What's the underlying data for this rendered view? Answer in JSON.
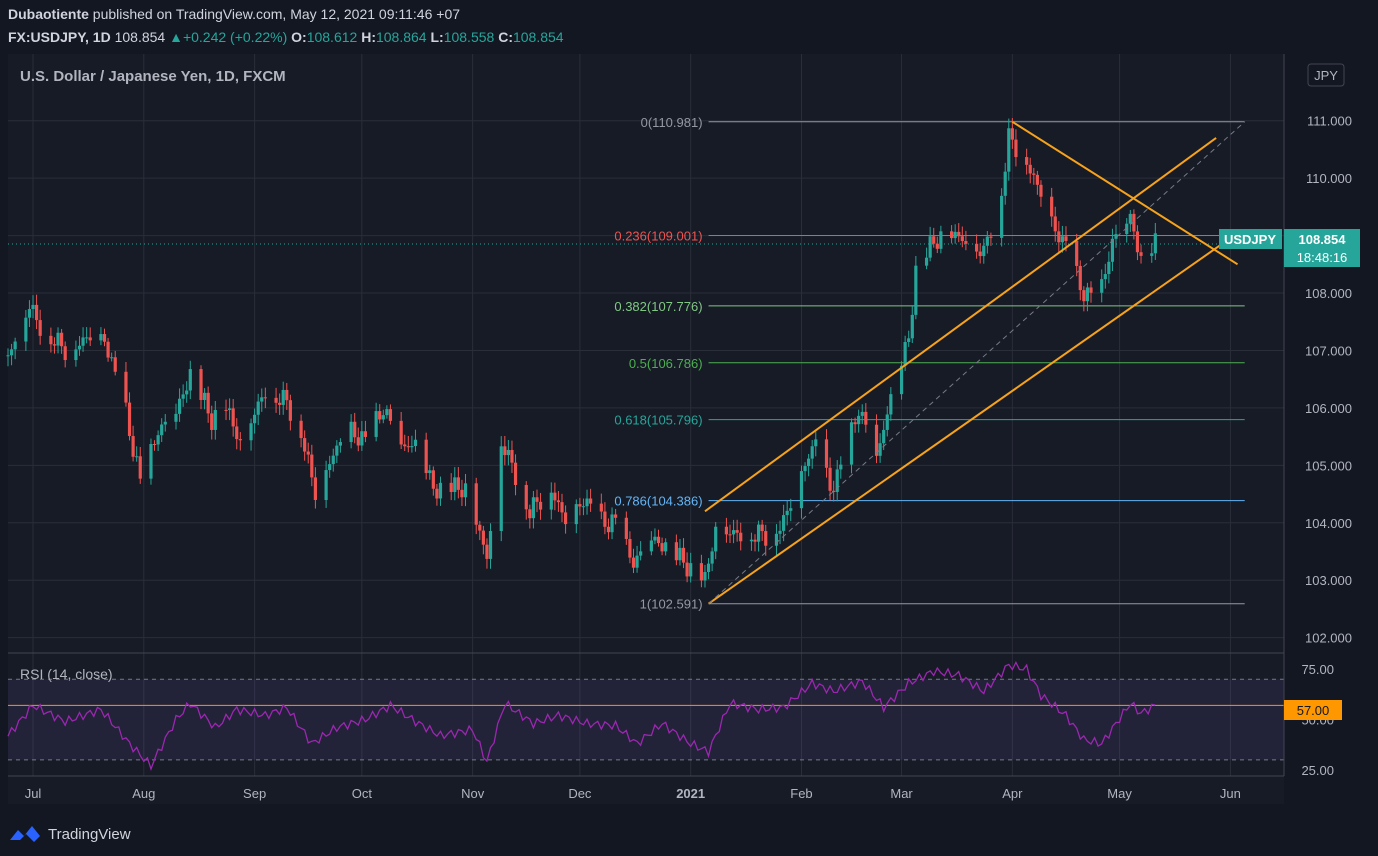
{
  "header": {
    "author": "Dubaotiente",
    "published_text": "published on TradingView.com, May 12, 2021 09:11:46 +07",
    "symbol": "FX:USDJPY, 1D",
    "last": "108.854",
    "change": "+0.242 (+0.22%)",
    "o_label": "O:",
    "o": "108.612",
    "h_label": "H:",
    "h": "108.864",
    "l_label": "L:",
    "l": "108.558",
    "c_label": "C:",
    "c": "108.854"
  },
  "chart": {
    "title": "U.S. Dollar / Japanese Yen, 1D, FXCM",
    "currency": "JPY",
    "price_tag_symbol": "USDJPY",
    "price_tag_value": "108.854",
    "countdown": "18:48:16",
    "rsi_label": "RSI (14, close)",
    "rsi_tag": "57.00"
  },
  "footer": {
    "brand": "TradingView"
  },
  "colors": {
    "background": "#131722",
    "up": "#26a69a",
    "down": "#ef5350",
    "channel": "#f7a21b",
    "rsi": "#9c27b0",
    "accent": "#26a69a"
  },
  "chart_data": [
    {
      "type": "candlestick",
      "title": "U.S. Dollar / Japanese Yen, 1D, FXCM",
      "ylim": [
        101.75,
        111.5
      ],
      "y_ticks": [
        "111.000",
        "110.000",
        "109.000",
        "108.000",
        "107.000",
        "106.000",
        "105.000",
        "104.000",
        "103.000",
        "102.000"
      ],
      "x_ticks": [
        "Jul",
        "Aug",
        "Sep",
        "Oct",
        "Nov",
        "Dec",
        "2021",
        "Feb",
        "Mar",
        "Apr",
        "May",
        "Jun"
      ],
      "x_range": [
        "2020-06-24",
        "2021-06-16"
      ],
      "close_path": [
        [
          "2020-06-24",
          106.9
        ],
        [
          "2020-06-30",
          107.8
        ],
        [
          "2020-07-02",
          107.5
        ],
        [
          "2020-07-10",
          107.0
        ],
        [
          "2020-07-16",
          107.2
        ],
        [
          "2020-07-21",
          107.2
        ],
        [
          "2020-07-27",
          105.9
        ],
        [
          "2020-07-31",
          104.7
        ],
        [
          "2020-08-05",
          105.6
        ],
        [
          "2020-08-10",
          105.9
        ],
        [
          "2020-08-14",
          106.6
        ],
        [
          "2020-08-20",
          105.8
        ],
        [
          "2020-08-24",
          106.0
        ],
        [
          "2020-08-28",
          105.4
        ],
        [
          "2020-09-01",
          105.9
        ],
        [
          "2020-09-04",
          106.3
        ],
        [
          "2020-09-10",
          106.1
        ],
        [
          "2020-09-14",
          105.6
        ],
        [
          "2020-09-18",
          104.5
        ],
        [
          "2020-09-23",
          105.2
        ],
        [
          "2020-09-28",
          105.6
        ],
        [
          "2020-10-02",
          105.4
        ],
        [
          "2020-10-07",
          106.0
        ],
        [
          "2020-10-12",
          105.3
        ],
        [
          "2020-10-16",
          105.4
        ],
        [
          "2020-10-21",
          104.6
        ],
        [
          "2020-10-27",
          104.6
        ],
        [
          "2020-10-30",
          104.6
        ],
        [
          "2020-11-05",
          103.4
        ],
        [
          "2020-11-09",
          105.4
        ],
        [
          "2020-11-12",
          105.0
        ],
        [
          "2020-11-17",
          104.2
        ],
        [
          "2020-11-23",
          104.6
        ],
        [
          "2020-11-27",
          104.0
        ],
        [
          "2020-12-02",
          104.4
        ],
        [
          "2020-12-07",
          104.0
        ],
        [
          "2020-12-11",
          104.0
        ],
        [
          "2020-12-16",
          103.3
        ],
        [
          "2020-12-21",
          103.7
        ],
        [
          "2020-12-25",
          103.6
        ],
        [
          "2021-01-01",
          103.2
        ],
        [
          "2021-01-05",
          103.0
        ],
        [
          "2021-01-08",
          103.9
        ],
        [
          "2021-01-13",
          103.8
        ],
        [
          "2021-01-19",
          103.8
        ],
        [
          "2021-01-22",
          103.8
        ],
        [
          "2021-01-27",
          104.0
        ],
        [
          "2021-02-01",
          104.9
        ],
        [
          "2021-02-05",
          105.4
        ],
        [
          "2021-02-09",
          104.6
        ],
        [
          "2021-02-12",
          104.9
        ],
        [
          "2021-02-17",
          106.0
        ],
        [
          "2021-02-22",
          105.1
        ],
        [
          "2021-02-26",
          106.2
        ],
        [
          "2021-03-03",
          107.2
        ],
        [
          "2021-03-05",
          108.4
        ],
        [
          "2021-03-09",
          108.8
        ],
        [
          "2021-03-12",
          109.0
        ],
        [
          "2021-03-16",
          109.0
        ],
        [
          "2021-03-19",
          108.9
        ],
        [
          "2021-03-24",
          108.7
        ],
        [
          "2021-03-29",
          109.8
        ],
        [
          "2021-03-31",
          110.7
        ],
        [
          "2021-04-05",
          110.3
        ],
        [
          "2021-04-09",
          109.7
        ],
        [
          "2021-04-13",
          109.1
        ],
        [
          "2021-04-16",
          108.8
        ],
        [
          "2021-04-20",
          108.1
        ],
        [
          "2021-04-23",
          107.9
        ],
        [
          "2021-04-26",
          108.1
        ],
        [
          "2021-04-29",
          108.9
        ],
        [
          "2021-05-04",
          109.3
        ],
        [
          "2021-05-07",
          108.6
        ],
        [
          "2021-05-11",
          108.854
        ]
      ]
    },
    {
      "type": "fibonacci",
      "levels": [
        {
          "label": "0(110.981)",
          "value": 110.981,
          "color": "#9598a1"
        },
        {
          "label": "0.236(109.001)",
          "value": 109.001,
          "color": "#ef5350"
        },
        {
          "label": "0.382(107.776)",
          "value": 107.776,
          "color": "#81c784"
        },
        {
          "label": "0.5(106.786)",
          "value": 106.786,
          "color": "#4caf50"
        },
        {
          "label": "0.618(105.796)",
          "value": 105.796,
          "color": "#26a69a"
        },
        {
          "label": "0.786(104.386)",
          "value": 104.386,
          "color": "#64b5f6"
        },
        {
          "label": "1(102.591)",
          "value": 102.591,
          "color": "#9598a1"
        }
      ],
      "start_date": "2021-01-06",
      "end_date": "2021-06-05"
    },
    {
      "type": "trendlines",
      "lines": [
        {
          "from": [
            "2021-01-06",
            102.591
          ],
          "to": [
            "2021-06-02",
            109.0
          ],
          "style": "solid"
        },
        {
          "from": [
            "2021-01-05",
            104.2
          ],
          "to": [
            "2021-05-28",
            110.7
          ],
          "style": "solid"
        },
        {
          "from": [
            "2021-04-01",
            110.981
          ],
          "to": [
            "2021-06-03",
            108.5
          ],
          "style": "solid"
        },
        {
          "from": [
            "2021-01-06",
            102.591
          ],
          "to": [
            "2021-06-05",
            110.981
          ],
          "style": "dashed"
        }
      ]
    },
    {
      "type": "line",
      "title": "RSI (14, close)",
      "ylim": [
        22,
        82
      ],
      "y_ticks": [
        "75.00",
        "50.00",
        "25.00"
      ],
      "bands": [
        70,
        30
      ],
      "marker": 57,
      "series": [
        {
          "values": [
            [
              "2020-06-24",
              42
            ],
            [
              "2020-07-01",
              57
            ],
            [
              "2020-07-10",
              49
            ],
            [
              "2020-07-20",
              55
            ],
            [
              "2020-07-28",
              38
            ],
            [
              "2020-08-03",
              27
            ],
            [
              "2020-08-10",
              50
            ],
            [
              "2020-08-14",
              58
            ],
            [
              "2020-08-21",
              46
            ],
            [
              "2020-08-27",
              55
            ],
            [
              "2020-09-04",
              52
            ],
            [
              "2020-09-10",
              56
            ],
            [
              "2020-09-17",
              38
            ],
            [
              "2020-09-24",
              46
            ],
            [
              "2020-10-02",
              50
            ],
            [
              "2020-10-09",
              57
            ],
            [
              "2020-10-16",
              49
            ],
            [
              "2020-10-23",
              42
            ],
            [
              "2020-11-01",
              45
            ],
            [
              "2020-11-05",
              29
            ],
            [
              "2020-11-10",
              58
            ],
            [
              "2020-11-18",
              48
            ],
            [
              "2020-11-25",
              52
            ],
            [
              "2020-12-03",
              48
            ],
            [
              "2020-12-11",
              47
            ],
            [
              "2020-12-17",
              38
            ],
            [
              "2020-12-24",
              48
            ],
            [
              "2021-01-01",
              38
            ],
            [
              "2021-01-06",
              34
            ],
            [
              "2021-01-12",
              58
            ],
            [
              "2021-01-20",
              55
            ],
            [
              "2021-01-27",
              56
            ],
            [
              "2021-02-04",
              68
            ],
            [
              "2021-02-10",
              64
            ],
            [
              "2021-02-18",
              69
            ],
            [
              "2021-02-24",
              56
            ],
            [
              "2021-03-03",
              68
            ],
            [
              "2021-03-10",
              74
            ],
            [
              "2021-03-17",
              72
            ],
            [
              "2021-03-24",
              64
            ],
            [
              "2021-03-31",
              77
            ],
            [
              "2021-04-05",
              75
            ],
            [
              "2021-04-09",
              62
            ],
            [
              "2021-04-16",
              52
            ],
            [
              "2021-04-21",
              40
            ],
            [
              "2021-04-26",
              38
            ],
            [
              "2021-05-04",
              58
            ],
            [
              "2021-05-07",
              53
            ],
            [
              "2021-05-11",
              57
            ]
          ]
        }
      ]
    }
  ]
}
